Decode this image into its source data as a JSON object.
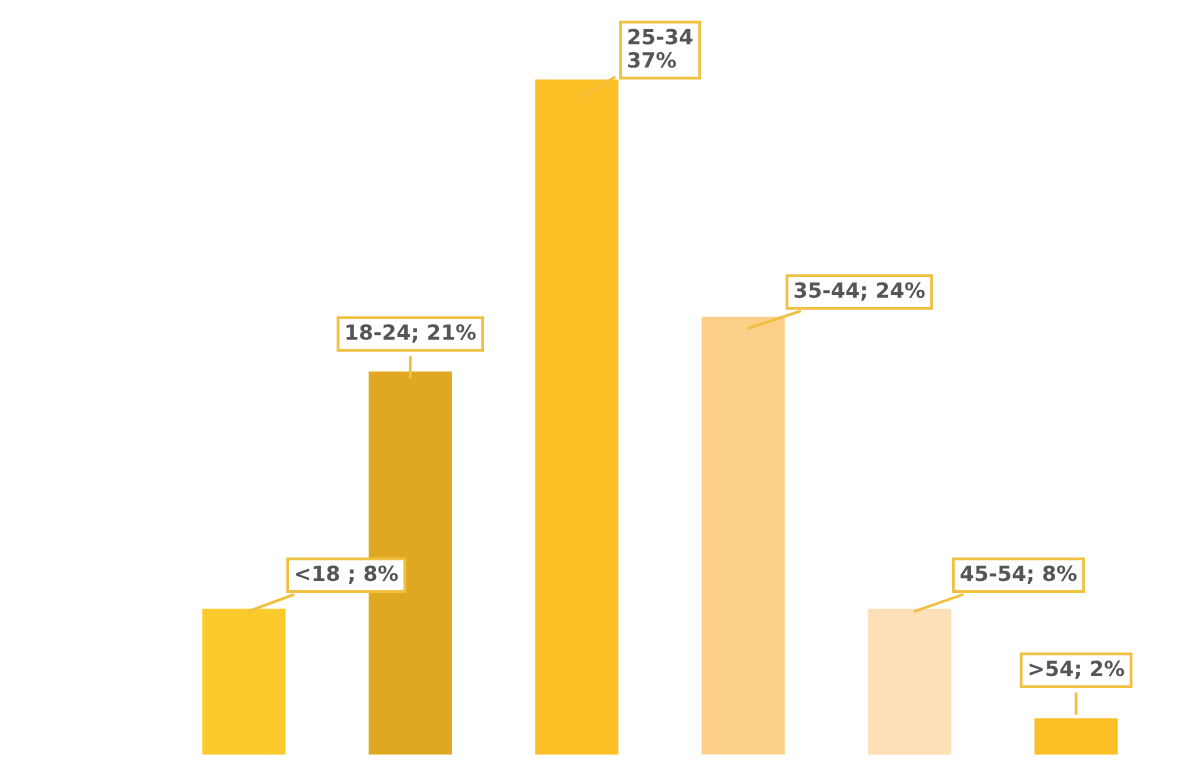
{
  "chart_data": {
    "type": "bar",
    "categories": [
      null,
      null,
      null,
      null,
      null,
      null
    ],
    "values": [
      8,
      21,
      37,
      24,
      8,
      2
    ],
    "colors": [
      "#fdca2e",
      "#e0a820",
      "#fdbf26",
      "#fdd08a",
      "#fde0b8",
      "#fdbf26"
    ],
    "value_labels": [
      "<18 ; 8%",
      "18-24; 21%",
      "25-34\n37%",
      "35-44; 24%",
      "45-54; 8%",
      ">54; 2%"
    ],
    "grid": false,
    "legend": false
  }
}
